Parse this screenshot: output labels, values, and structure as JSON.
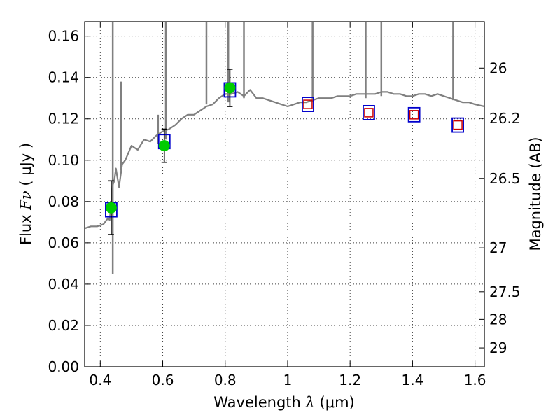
{
  "chart_data": {
    "type": "scatter",
    "xlabel_prefix": "Wavelength",
    "xlabel_symbol": "λ",
    "xlabel_unit": "(μm)",
    "ylabel_prefix": "Flux",
    "ylabel_symbol": "Fν",
    "ylabel_unit": "( μJy )",
    "y2label": "Magnitude (AB)",
    "xlim": [
      0.35,
      1.63
    ],
    "ylim": [
      0.0,
      0.167
    ],
    "grid": true,
    "x_ticks": [
      0.4,
      0.6,
      0.8,
      1.0,
      1.2,
      1.4,
      1.6
    ],
    "x_tick_labels": [
      "0.4",
      "0.6",
      "0.8",
      "1",
      "1.2",
      "1.4",
      "1.6"
    ],
    "y_ticks": [
      0.0,
      0.02,
      0.04,
      0.06,
      0.08,
      0.1,
      0.12,
      0.14,
      0.16
    ],
    "y_tick_labels": [
      "0.00",
      "0.02",
      "0.04",
      "0.06",
      "0.08",
      "0.10",
      "0.12",
      "0.14",
      "0.16"
    ],
    "mag_ticks": [
      26,
      26.2,
      26.5,
      27,
      27.5,
      28,
      29
    ],
    "mag_tick_labels": [
      "26",
      "26.2",
      "26.5",
      "27",
      "27.5",
      "28",
      "29"
    ],
    "colors": {
      "spectrum": "#808080",
      "observed": "#00cc00",
      "model_blue": "#0000cc",
      "model_red": "#cc0000",
      "errorbar": "#000000"
    },
    "series": [
      {
        "name": "model spectrum",
        "style": "line",
        "points": [
          [
            0.35,
            0.067
          ],
          [
            0.37,
            0.068
          ],
          [
            0.39,
            0.068
          ],
          [
            0.41,
            0.069
          ],
          [
            0.425,
            0.072
          ],
          [
            0.43,
            0.071
          ],
          [
            0.435,
            0.079
          ],
          [
            0.44,
            0.088
          ],
          [
            0.445,
            0.09
          ],
          [
            0.45,
            0.096
          ],
          [
            0.46,
            0.087
          ],
          [
            0.47,
            0.098
          ],
          [
            0.48,
            0.1
          ],
          [
            0.5,
            0.107
          ],
          [
            0.52,
            0.105
          ],
          [
            0.54,
            0.11
          ],
          [
            0.56,
            0.109
          ],
          [
            0.58,
            0.112
          ],
          [
            0.6,
            0.114
          ],
          [
            0.62,
            0.115
          ],
          [
            0.64,
            0.117
          ],
          [
            0.66,
            0.12
          ],
          [
            0.68,
            0.122
          ],
          [
            0.7,
            0.122
          ],
          [
            0.72,
            0.124
          ],
          [
            0.74,
            0.126
          ],
          [
            0.76,
            0.127
          ],
          [
            0.78,
            0.13
          ],
          [
            0.8,
            0.132
          ],
          [
            0.82,
            0.132
          ],
          [
            0.84,
            0.133
          ],
          [
            0.86,
            0.131
          ],
          [
            0.88,
            0.134
          ],
          [
            0.9,
            0.13
          ],
          [
            0.92,
            0.13
          ],
          [
            0.94,
            0.129
          ],
          [
            0.96,
            0.128
          ],
          [
            0.98,
            0.127
          ],
          [
            1.0,
            0.126
          ],
          [
            1.02,
            0.127
          ],
          [
            1.04,
            0.128
          ],
          [
            1.06,
            0.128
          ],
          [
            1.08,
            0.129
          ],
          [
            1.1,
            0.13
          ],
          [
            1.12,
            0.13
          ],
          [
            1.14,
            0.13
          ],
          [
            1.16,
            0.131
          ],
          [
            1.18,
            0.131
          ],
          [
            1.2,
            0.131
          ],
          [
            1.22,
            0.132
          ],
          [
            1.24,
            0.132
          ],
          [
            1.26,
            0.132
          ],
          [
            1.28,
            0.132
          ],
          [
            1.3,
            0.133
          ],
          [
            1.32,
            0.133
          ],
          [
            1.34,
            0.132
          ],
          [
            1.36,
            0.132
          ],
          [
            1.38,
            0.131
          ],
          [
            1.4,
            0.131
          ],
          [
            1.42,
            0.132
          ],
          [
            1.44,
            0.132
          ],
          [
            1.46,
            0.131
          ],
          [
            1.48,
            0.132
          ],
          [
            1.5,
            0.131
          ],
          [
            1.52,
            0.13
          ],
          [
            1.54,
            0.129
          ],
          [
            1.56,
            0.128
          ],
          [
            1.58,
            0.128
          ],
          [
            1.6,
            0.127
          ],
          [
            1.63,
            0.126
          ]
        ],
        "emission_lines": [
          [
            0.44,
            0.045,
            0.167
          ],
          [
            0.467,
            0.095,
            0.138
          ],
          [
            0.585,
            0.108,
            0.122
          ],
          [
            0.61,
            0.11,
            0.167
          ],
          [
            0.74,
            0.127,
            0.167
          ],
          [
            0.81,
            0.128,
            0.167
          ],
          [
            0.86,
            0.13,
            0.167
          ],
          [
            1.08,
            0.128,
            0.167
          ],
          [
            1.25,
            0.13,
            0.167
          ],
          [
            1.3,
            0.131,
            0.167
          ],
          [
            1.53,
            0.129,
            0.167
          ]
        ]
      },
      {
        "name": "observed photometry",
        "style": "marker",
        "x": [
          0.435,
          0.605,
          0.815
        ],
        "y": [
          0.077,
          0.107,
          0.135
        ],
        "yerr": [
          0.013,
          0.008,
          0.009
        ]
      },
      {
        "name": "model photometry (blue)",
        "style": "open-square",
        "x": [
          0.435,
          0.605,
          0.815,
          1.065,
          1.26,
          1.405,
          1.545
        ],
        "y": [
          0.076,
          0.109,
          0.134,
          0.127,
          0.123,
          0.122,
          0.117
        ]
      },
      {
        "name": "model photometry (red)",
        "style": "open-square",
        "x": [
          1.065,
          1.26,
          1.405,
          1.545
        ],
        "y": [
          0.127,
          0.123,
          0.122,
          0.117
        ]
      }
    ]
  }
}
